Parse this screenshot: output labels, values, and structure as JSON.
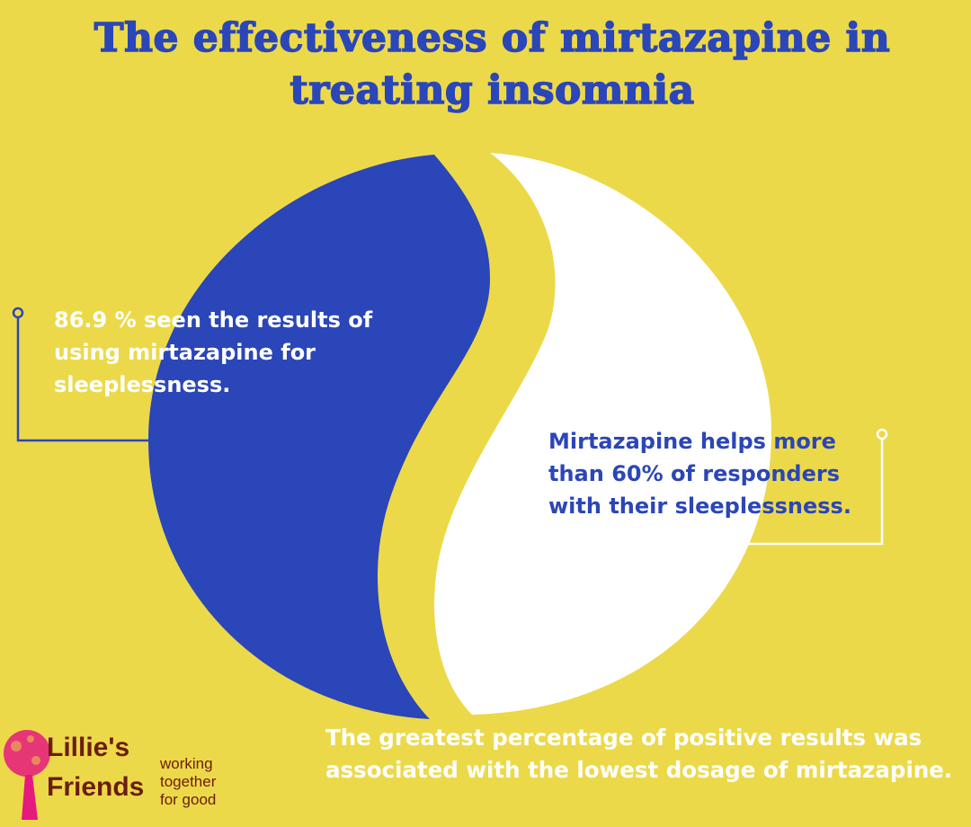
{
  "title": "The effectiveness of mirtazapine in treating insomnia",
  "callouts": {
    "left": "86.9 % seen the results of using mirtazapine for sleeplessness.",
    "right": "Mirtazapine helps more than 60% of responders with their sleeplessness.",
    "bottom": "The greatest percentage of positive results was associated with the lowest dosage of mirtazapine."
  },
  "logo": {
    "name": "Lillie's Friends",
    "tagline_lines": [
      "working",
      "together",
      "for good"
    ]
  },
  "colors": {
    "background": "#ecd94a",
    "blue": "#2b46b8",
    "white": "#ffffff",
    "logo_pink": "#e5197e",
    "logo_brown": "#6b1d0f"
  }
}
